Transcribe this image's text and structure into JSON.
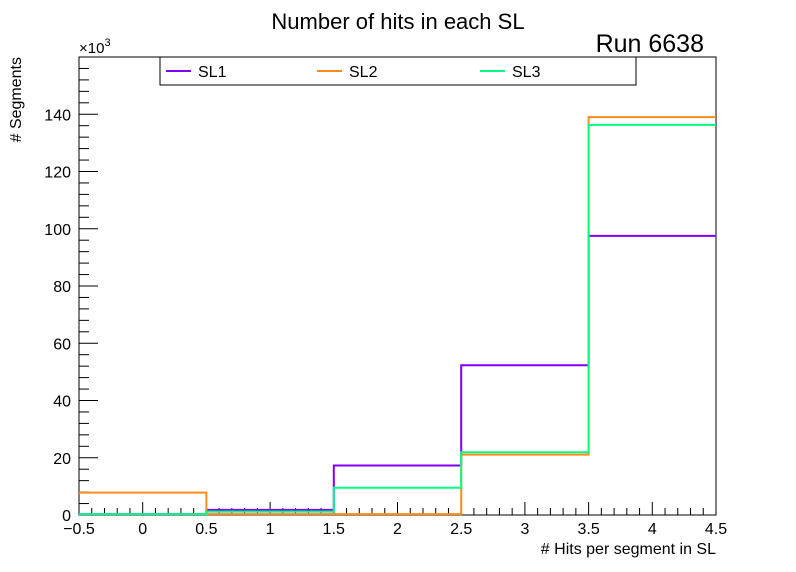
{
  "chart_data": {
    "type": "line",
    "title": "Number of hits in each SL",
    "annotation": "Run 6638",
    "xlabel": "# Hits per segment in SL",
    "ylabel": "# Segments",
    "y_multiplier_label": "×10",
    "y_multiplier_exp": "3",
    "xlim": [
      -0.5,
      4.5
    ],
    "ylim": [
      0,
      160
    ],
    "x_ticks": [
      -0.5,
      0,
      0.5,
      1,
      1.5,
      2,
      2.5,
      3,
      3.5,
      4,
      4.5
    ],
    "x_tick_labels": [
      "−0.5",
      "0",
      "0.5",
      "1",
      "1.5",
      "2",
      "2.5",
      "3",
      "3.5",
      "4",
      "4.5"
    ],
    "y_ticks": [
      0,
      20,
      40,
      60,
      80,
      100,
      120,
      140
    ],
    "y_tick_labels": [
      "0",
      "20",
      "40",
      "60",
      "80",
      "100",
      "120",
      "140"
    ],
    "bin_edges": [
      -0.5,
      0.5,
      1.5,
      2.5,
      3.5,
      4.5
    ],
    "series": [
      {
        "name": "SL1",
        "color": "#8000ff",
        "values": [
          0.3,
          1.8,
          17.3,
          52.3,
          97.5
        ]
      },
      {
        "name": "SL2",
        "color": "#ff8c1a",
        "values": [
          7.8,
          0.3,
          0.3,
          21.1,
          139.0
        ]
      },
      {
        "name": "SL3",
        "color": "#00ff80",
        "values": [
          0.3,
          1.2,
          9.5,
          21.9,
          136.3
        ]
      }
    ],
    "legend_position": "top"
  }
}
